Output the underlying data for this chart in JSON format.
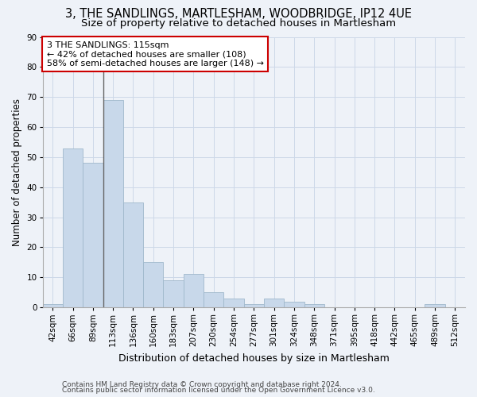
{
  "title_line1": "3, THE SANDLINGS, MARTLESHAM, WOODBRIDGE, IP12 4UE",
  "title_line2": "Size of property relative to detached houses in Martlesham",
  "xlabel": "Distribution of detached houses by size in Martlesham",
  "ylabel": "Number of detached properties",
  "categories": [
    "42sqm",
    "66sqm",
    "89sqm",
    "113sqm",
    "136sqm",
    "160sqm",
    "183sqm",
    "207sqm",
    "230sqm",
    "254sqm",
    "277sqm",
    "301sqm",
    "324sqm",
    "348sqm",
    "371sqm",
    "395sqm",
    "418sqm",
    "442sqm",
    "465sqm",
    "489sqm",
    "512sqm"
  ],
  "values": [
    1,
    53,
    48,
    69,
    35,
    15,
    9,
    11,
    5,
    3,
    1,
    3,
    2,
    1,
    0,
    0,
    0,
    0,
    0,
    1,
    0
  ],
  "bar_color": "#c8d8ea",
  "bar_edge_color": "#a0b8cc",
  "vline_x_index": 2.5,
  "vline_color": "#666666",
  "annotation_text": "3 THE SANDLINGS: 115sqm\n← 42% of detached houses are smaller (108)\n58% of semi-detached houses are larger (148) →",
  "annotation_box_color": "white",
  "annotation_box_edge_color": "#cc0000",
  "annotation_fontsize": 8.0,
  "ylim": [
    0,
    90
  ],
  "yticks": [
    0,
    10,
    20,
    30,
    40,
    50,
    60,
    70,
    80,
    90
  ],
  "grid_color": "#ccd8e8",
  "background_color": "#eef2f8",
  "footer_line1": "Contains HM Land Registry data © Crown copyright and database right 2024.",
  "footer_line2": "Contains public sector information licensed under the Open Government Licence v3.0.",
  "title_fontsize": 10.5,
  "subtitle_fontsize": 9.5,
  "xlabel_fontsize": 9,
  "ylabel_fontsize": 8.5,
  "tick_fontsize": 7.5,
  "footer_fontsize": 6.5
}
